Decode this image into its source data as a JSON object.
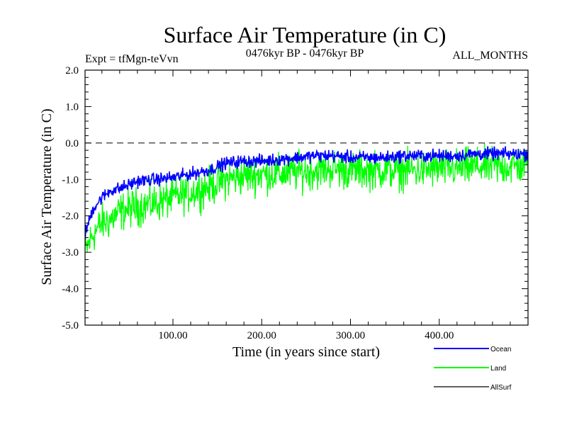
{
  "header": {
    "title": "Surface Air Temperature (in C)",
    "expt": "Expt = tfMgn-teVvn",
    "period": "0476kyr BP - 0476kyr BP",
    "months": "ALL_MONTHS"
  },
  "chart_data": {
    "type": "line",
    "xlabel": "Time (in years since start)",
    "ylabel": "Surface Air Temperature (in C)",
    "xlim": [
      1,
      500
    ],
    "ylim": [
      -5.0,
      2.0
    ],
    "x_ticks": [
      100,
      200,
      300,
      400
    ],
    "x_tick_labels": [
      "100.00",
      "200.00",
      "300.00",
      "400.00"
    ],
    "y_ticks": [
      -5,
      -4,
      -3,
      -2,
      -1,
      0,
      1,
      2
    ],
    "y_tick_labels": [
      "-5.0",
      "-4.0",
      "-3.0",
      "-2.0",
      "-1.0",
      "0.0",
      "1.0",
      "2.0"
    ],
    "reference_line": 0.0,
    "series": [
      {
        "name": "Ocean",
        "color": "#0000ff",
        "x": [
          1,
          10,
          20,
          30,
          40,
          50,
          60,
          80,
          100,
          120,
          140,
          160,
          180,
          200,
          220,
          240,
          260,
          280,
          300,
          320,
          340,
          360,
          380,
          400,
          420,
          440,
          460,
          480,
          500
        ],
        "y": [
          -2.5,
          -1.8,
          -1.5,
          -1.3,
          -1.25,
          -1.15,
          -1.05,
          -1.0,
          -0.95,
          -0.85,
          -0.75,
          -0.55,
          -0.5,
          -0.5,
          -0.45,
          -0.4,
          -0.35,
          -0.35,
          -0.4,
          -0.4,
          -0.4,
          -0.35,
          -0.35,
          -0.35,
          -0.35,
          -0.3,
          -0.3,
          -0.3,
          -0.3
        ],
        "noise": 0.25
      },
      {
        "name": "Land",
        "color": "#00ff00",
        "x": [
          1,
          10,
          20,
          30,
          40,
          50,
          60,
          80,
          100,
          120,
          140,
          160,
          180,
          200,
          220,
          240,
          260,
          280,
          300,
          320,
          340,
          360,
          380,
          400,
          420,
          440,
          460,
          480,
          500
        ],
        "y": [
          -3.0,
          -2.5,
          -2.2,
          -2.1,
          -1.9,
          -1.8,
          -1.75,
          -1.65,
          -1.5,
          -1.35,
          -1.2,
          -1.0,
          -0.9,
          -0.85,
          -0.85,
          -0.8,
          -0.75,
          -0.7,
          -0.75,
          -0.75,
          -0.75,
          -0.75,
          -0.75,
          -0.7,
          -0.7,
          -0.65,
          -0.65,
          -0.65,
          -0.6
        ],
        "noise": 0.75
      },
      {
        "name": "AllSurf",
        "color": "#000000",
        "x": [],
        "y": []
      }
    ],
    "legend_position": "below-right"
  }
}
